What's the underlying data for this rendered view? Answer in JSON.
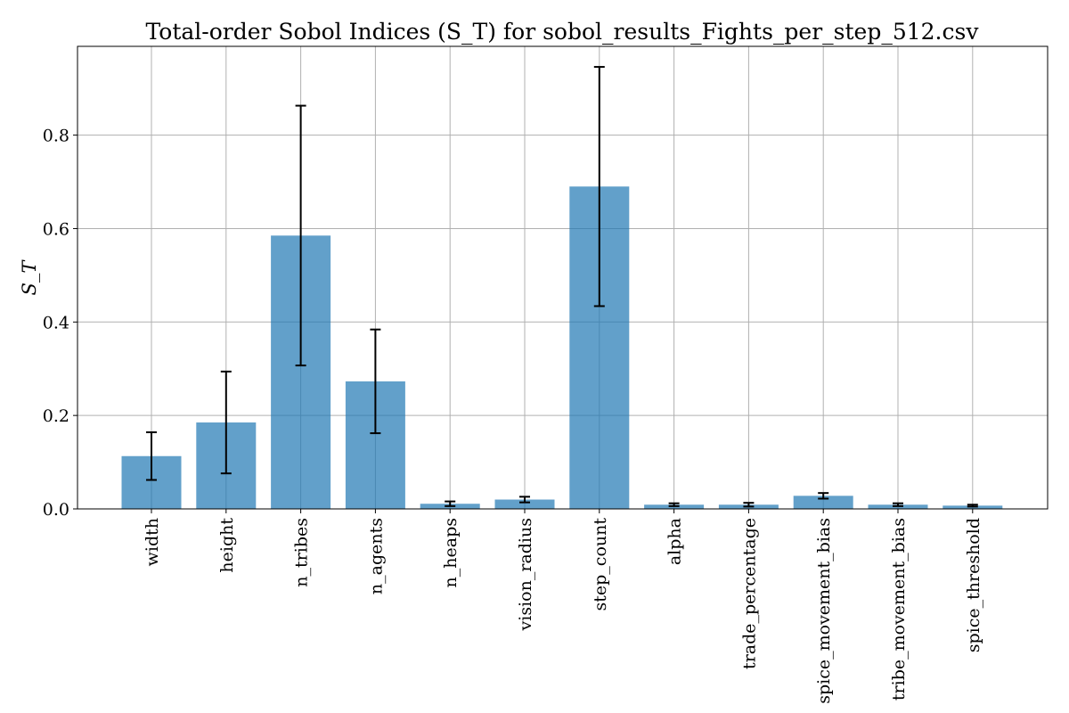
{
  "chart_data": {
    "type": "bar",
    "title": "Total-order Sobol Indices (S_T) for sobol_results_Fights_per_step_512.csv",
    "ylabel": "S_T",
    "xlabel": "",
    "categories": [
      "width",
      "height",
      "n_tribes",
      "n_agents",
      "n_heaps",
      "vision_radius",
      "step_count",
      "alpha",
      "trade_percentage",
      "spice_movement_bias",
      "tribe_movement_bias",
      "spice_threshold"
    ],
    "values": [
      0.113,
      0.185,
      0.585,
      0.273,
      0.011,
      0.02,
      0.69,
      0.009,
      0.009,
      0.028,
      0.009,
      0.007
    ],
    "error": [
      0.051,
      0.109,
      0.278,
      0.111,
      0.005,
      0.006,
      0.256,
      0.003,
      0.004,
      0.006,
      0.003,
      0.002
    ],
    "ylim": [
      0.0,
      0.99
    ],
    "yticks": [
      "0.0",
      "0.2",
      "0.4",
      "0.6",
      "0.8"
    ],
    "ytick_values": [
      0.0,
      0.2,
      0.4,
      0.6,
      0.8
    ],
    "grid": true,
    "color": "#1f77b4"
  }
}
